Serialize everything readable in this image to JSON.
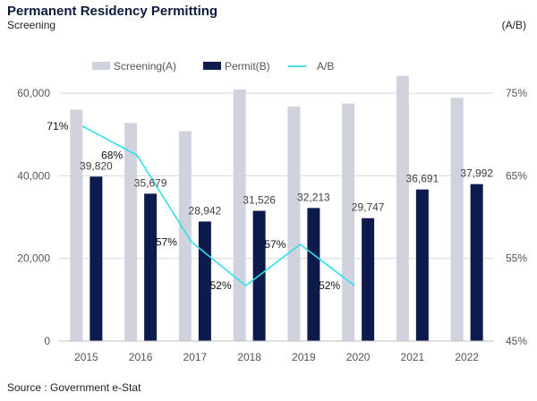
{
  "header": {
    "title": "Permanent Residency Permitting",
    "left_axis_title": "Screening",
    "right_axis_title": "(A/B)"
  },
  "source": "Source : Government e-Stat",
  "chart_data": {
    "type": "bar",
    "categories": [
      "2015",
      "2016",
      "2017",
      "2018",
      "2019",
      "2020",
      "2021",
      "2022"
    ],
    "series": [
      {
        "name": "Screening(A)",
        "type": "bar",
        "axis": "left",
        "color": "#d0d2de",
        "values": [
          56000,
          52800,
          50800,
          60900,
          56800,
          57500,
          64200,
          58900
        ]
      },
      {
        "name": "Permit(B)",
        "type": "bar",
        "axis": "left",
        "color": "#0d1b4c",
        "values": [
          39820,
          35679,
          28942,
          31526,
          32213,
          29747,
          36691,
          37992
        ],
        "labels": [
          "39,820",
          "35,679",
          "28,942",
          "31,526",
          "32,213",
          "29,747",
          "36,691",
          "37,992"
        ]
      },
      {
        "name": "A/B",
        "type": "line",
        "axis": "right",
        "color": "#2fe0ec",
        "values": [
          71,
          67.5,
          57,
          51.7,
          56.7,
          51.7,
          null,
          null
        ],
        "labels": [
          "71%",
          "68%",
          "57%",
          "52%",
          "57%",
          "52%",
          "",
          ""
        ]
      }
    ],
    "ylim": [
      0,
      70000
    ],
    "yticks": [
      0,
      20000,
      40000,
      60000
    ],
    "ytick_labels": [
      "0",
      "20,000",
      "40,000",
      "60,000"
    ],
    "y2lim": [
      45,
      80
    ],
    "y2ticks": [
      45,
      55,
      65,
      75
    ],
    "y2tick_labels": [
      "45%",
      "55%",
      "65%",
      "75%"
    ],
    "legend_position": "top"
  }
}
